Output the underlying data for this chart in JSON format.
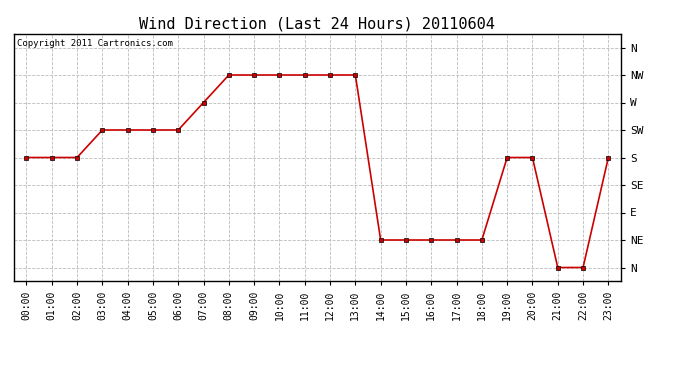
{
  "title": "Wind Direction (Last 24 Hours) 20110604",
  "copyright_text": "Copyright 2011 Cartronics.com",
  "x_labels": [
    "00:00",
    "01:00",
    "02:00",
    "03:00",
    "04:00",
    "05:00",
    "06:00",
    "07:00",
    "08:00",
    "09:00",
    "10:00",
    "11:00",
    "12:00",
    "13:00",
    "14:00",
    "15:00",
    "16:00",
    "17:00",
    "18:00",
    "19:00",
    "20:00",
    "21:00",
    "22:00",
    "23:00"
  ],
  "y_labels": [
    "N",
    "NE",
    "E",
    "SE",
    "S",
    "SW",
    "W",
    "NW",
    "N"
  ],
  "y_values": [
    0,
    1,
    2,
    3,
    4,
    5,
    6,
    7,
    8
  ],
  "data_points": [
    4,
    4,
    4,
    5,
    5,
    5,
    5,
    6,
    7,
    7,
    7,
    7,
    7,
    7,
    1,
    1,
    1,
    1,
    1,
    4,
    4,
    0,
    0,
    4
  ],
  "line_color": "#cc0000",
  "marker": "s",
  "marker_size": 3,
  "marker_color": "#cc0000",
  "background_color": "#ffffff",
  "grid_color": "#bbbbbb",
  "title_fontsize": 11,
  "xlabel_fontsize": 7,
  "ylabel_fontsize": 8,
  "copyright_fontsize": 6.5
}
